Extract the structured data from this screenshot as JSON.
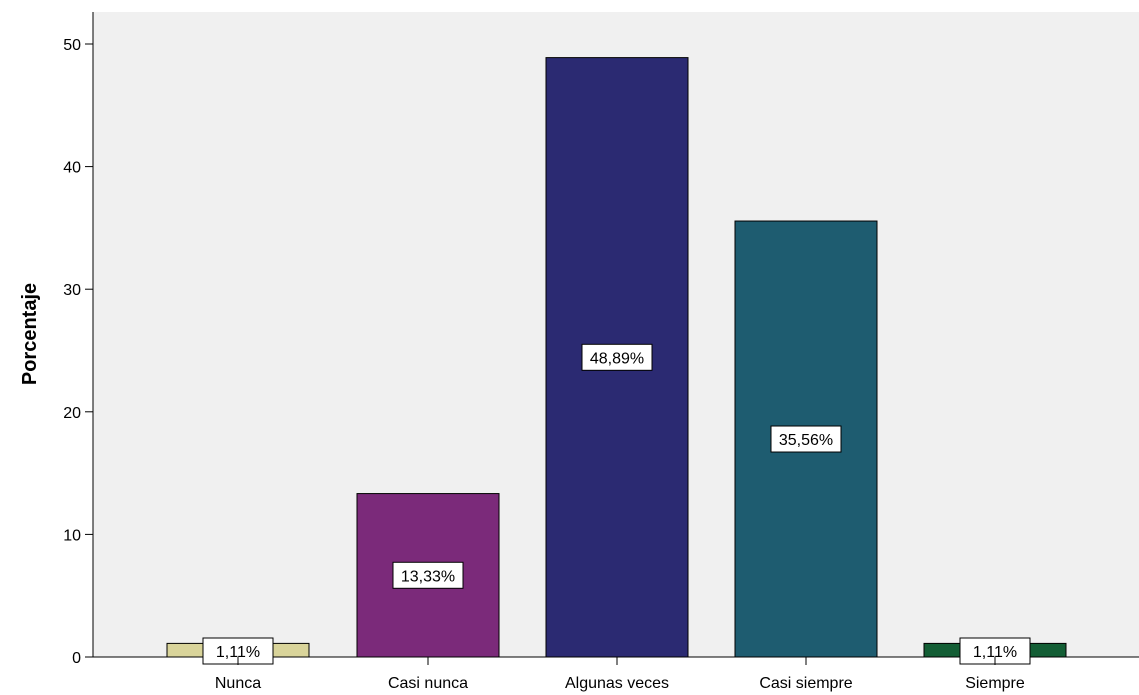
{
  "chart_data": {
    "type": "bar",
    "title": "",
    "xlabel": "",
    "ylabel": "Porcentaje",
    "ylim": [
      0,
      52
    ],
    "yticks": [
      0,
      10,
      20,
      30,
      40,
      50
    ],
    "grid": false,
    "legend": "none",
    "categories": [
      "Nunca",
      "Casi nunca",
      "Algunas veces",
      "Casi siempre",
      "Siempre"
    ],
    "values": [
      1.11,
      13.33,
      48.89,
      35.56,
      1.11
    ],
    "data_labels": [
      "1,11%",
      "13,33%",
      "48,89%",
      "35,56%",
      "1,11%"
    ],
    "colors": [
      "#d9d49a",
      "#7b2a7a",
      "#2b2a72",
      "#1e5c70",
      "#135e35"
    ],
    "plot_background": "#f0f0f0"
  }
}
